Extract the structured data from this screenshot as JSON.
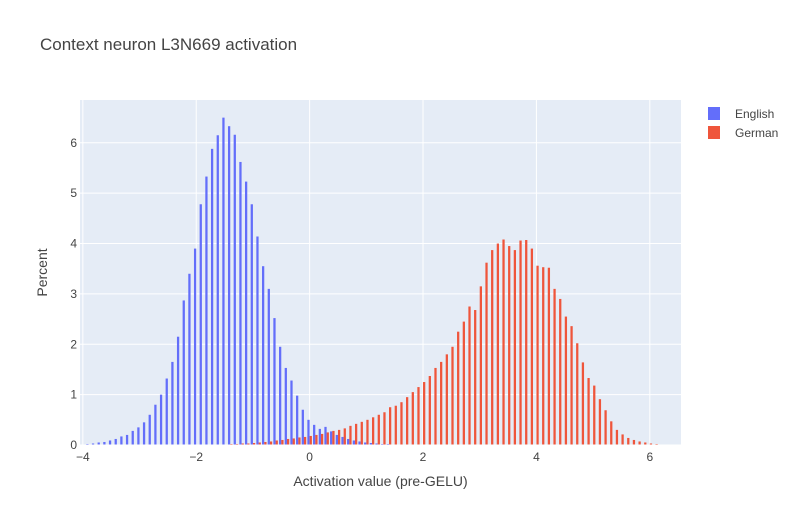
{
  "chart_data": {
    "type": "bar",
    "title": "Context neuron L3N669 activation",
    "xlabel": "Activation value (pre-GELU)",
    "ylabel": "Percent",
    "xlim": [
      -4.05,
      6.55
    ],
    "ylim": [
      0,
      6.85
    ],
    "x_ticks": [
      -4,
      -2,
      0,
      2,
      4,
      6
    ],
    "x_tick_labels": [
      "−4",
      "−2",
      "0",
      "2",
      "4",
      "6"
    ],
    "y_ticks": [
      0,
      1,
      2,
      3,
      4,
      5,
      6
    ],
    "y_tick_labels": [
      "0",
      "1",
      "2",
      "3",
      "4",
      "5",
      "6"
    ],
    "grid": true,
    "legend_position": "top-right",
    "bin_width": 0.1,
    "series": [
      {
        "name": "English",
        "color": "#636efa",
        "x": [
          -4.0,
          -3.9,
          -3.8,
          -3.7,
          -3.6,
          -3.5,
          -3.4,
          -3.3,
          -3.2,
          -3.1,
          -3.0,
          -2.9,
          -2.8,
          -2.7,
          -2.6,
          -2.5,
          -2.4,
          -2.3,
          -2.2,
          -2.1,
          -2.0,
          -1.9,
          -1.8,
          -1.7,
          -1.6,
          -1.5,
          -1.4,
          -1.3,
          -1.2,
          -1.1,
          -1.0,
          -0.9,
          -0.8,
          -0.7,
          -0.6,
          -0.5,
          -0.4,
          -0.3,
          -0.2,
          -0.1,
          0.0,
          0.1,
          0.2,
          0.3,
          0.4,
          0.5,
          0.6,
          0.7,
          0.8,
          0.9,
          1.0,
          1.1,
          1.2,
          1.3,
          1.4,
          1.5,
          1.6,
          1.7,
          1.8,
          1.9,
          2.0,
          2.1,
          2.2
        ],
        "values": [
          0.01,
          0.02,
          0.03,
          0.05,
          0.06,
          0.09,
          0.12,
          0.17,
          0.2,
          0.28,
          0.35,
          0.45,
          0.6,
          0.8,
          1.0,
          1.32,
          1.65,
          2.15,
          2.87,
          3.4,
          3.9,
          4.78,
          5.33,
          5.88,
          6.15,
          6.5,
          6.33,
          6.16,
          5.62,
          5.23,
          4.78,
          4.14,
          3.55,
          3.1,
          2.52,
          1.95,
          1.53,
          1.28,
          0.98,
          0.7,
          0.5,
          0.4,
          0.32,
          0.36,
          0.27,
          0.2,
          0.16,
          0.12,
          0.09,
          0.07,
          0.05,
          0.04,
          0.03,
          0.02,
          0.02,
          0.01,
          0.01,
          0.01,
          0.01,
          0.01,
          0.0,
          0.0,
          0.0
        ]
      },
      {
        "name": "German",
        "color": "#ef553b",
        "x": [
          -1.5,
          -1.4,
          -1.3,
          -1.2,
          -1.1,
          -1.0,
          -0.9,
          -0.8,
          -0.7,
          -0.6,
          -0.5,
          -0.4,
          -0.3,
          -0.2,
          -0.1,
          0.0,
          0.1,
          0.2,
          0.3,
          0.4,
          0.5,
          0.6,
          0.7,
          0.8,
          0.9,
          1.0,
          1.1,
          1.2,
          1.3,
          1.4,
          1.5,
          1.6,
          1.7,
          1.8,
          1.9,
          2.0,
          2.1,
          2.2,
          2.3,
          2.4,
          2.5,
          2.6,
          2.7,
          2.8,
          2.9,
          3.0,
          3.1,
          3.2,
          3.3,
          3.4,
          3.5,
          3.6,
          3.7,
          3.8,
          3.9,
          4.0,
          4.1,
          4.2,
          4.3,
          4.4,
          4.5,
          4.6,
          4.7,
          4.8,
          4.9,
          5.0,
          5.1,
          5.2,
          5.3,
          5.4,
          5.5,
          5.6,
          5.7,
          5.8,
          5.9,
          6.0,
          6.1,
          6.2,
          6.3,
          6.4
        ],
        "values": [
          0.01,
          0.02,
          0.02,
          0.03,
          0.03,
          0.04,
          0.05,
          0.06,
          0.07,
          0.09,
          0.1,
          0.12,
          0.13,
          0.15,
          0.16,
          0.18,
          0.2,
          0.22,
          0.25,
          0.28,
          0.3,
          0.33,
          0.38,
          0.42,
          0.46,
          0.5,
          0.55,
          0.6,
          0.65,
          0.75,
          0.78,
          0.85,
          0.95,
          1.05,
          1.15,
          1.25,
          1.37,
          1.53,
          1.65,
          1.8,
          1.95,
          2.25,
          2.45,
          2.75,
          2.68,
          3.15,
          3.62,
          3.87,
          4.0,
          4.08,
          3.95,
          3.87,
          4.06,
          4.07,
          3.9,
          3.56,
          3.53,
          3.52,
          3.1,
          2.9,
          2.55,
          2.36,
          2.02,
          1.64,
          1.33,
          1.18,
          0.91,
          0.69,
          0.47,
          0.3,
          0.21,
          0.14,
          0.1,
          0.07,
          0.05,
          0.03,
          0.02,
          0.01,
          0.01,
          0.01
        ]
      }
    ]
  }
}
